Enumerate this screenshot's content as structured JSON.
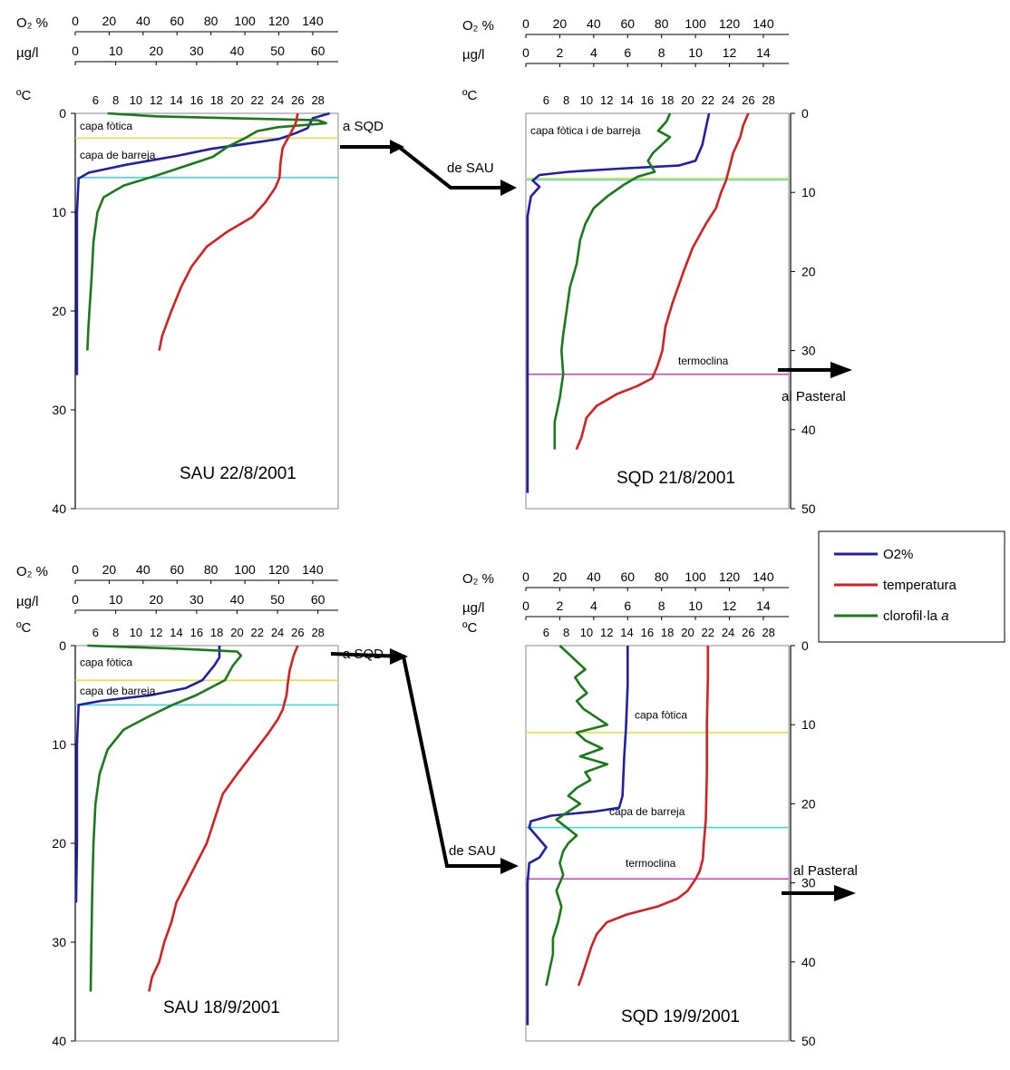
{
  "legend": {
    "items": [
      {
        "label": "O2%",
        "color": "#1f1fa8"
      },
      {
        "label": "temperatura",
        "color": "#d42020"
      },
      {
        "label": "clorofil·la ",
        "label_italic": "a",
        "color": "#1a7a1a"
      }
    ]
  },
  "colors": {
    "o2": "#1f1fa8",
    "temp": "#d42020",
    "chl": "#1a7a1a",
    "yellow_line": "#e8e040",
    "cyan_line": "#40d8e0",
    "magenta_line": "#d040c0"
  },
  "chart_data": [
    {
      "type": "line",
      "id": "sau-aug",
      "title": "SAU 22/8/2001",
      "units": {
        "o2": "O₂ %",
        "chl": "µg/l",
        "temp": "ºC"
      },
      "o2_ticks": [
        "0",
        "20",
        "40",
        "60",
        "80",
        "100",
        "120",
        "140"
      ],
      "chl_ticks": [
        "0",
        "10",
        "20",
        "30",
        "40",
        "50",
        "60"
      ],
      "temp_ticks": [
        "6",
        "8",
        "10",
        "12",
        "14",
        "16",
        "18",
        "20",
        "22",
        "24",
        "26",
        "28"
      ],
      "depth_ticks": [
        "0",
        "10",
        "20",
        "30",
        "40"
      ],
      "depth_range": [
        0,
        40
      ],
      "o2_range": [
        0,
        155
      ],
      "chl_range": [
        0,
        65
      ],
      "temp_range": [
        4,
        30
      ],
      "hlines": [
        {
          "depth": 2.5,
          "color": "yellow"
        },
        {
          "depth": 6.5,
          "color": "cyan"
        }
      ],
      "annotations": [
        {
          "text": "capa fòtica",
          "depth": 1.3
        },
        {
          "text": "capa de barreja",
          "depth": 4.2
        }
      ],
      "series": {
        "o2": [
          [
            150,
            0
          ],
          [
            140,
            0.5
          ],
          [
            137,
            1.5
          ],
          [
            130,
            2
          ],
          [
            125,
            2.3
          ],
          [
            120,
            2.6
          ],
          [
            100,
            3.1
          ],
          [
            80,
            3.6
          ],
          [
            60,
            4.3
          ],
          [
            30,
            5.2
          ],
          [
            8,
            6
          ],
          [
            2,
            6.6
          ],
          [
            1,
            10
          ],
          [
            1,
            20
          ],
          [
            1,
            26.5
          ]
        ],
        "chl": [
          [
            8,
            0
          ],
          [
            20,
            0.3
          ],
          [
            60,
            0.7
          ],
          [
            62,
            1
          ],
          [
            50,
            1.4
          ],
          [
            45,
            1.8
          ],
          [
            42,
            2.5
          ],
          [
            38,
            3.3
          ],
          [
            34,
            4.4
          ],
          [
            26,
            5.5
          ],
          [
            20,
            6.3
          ],
          [
            12,
            7.3
          ],
          [
            7,
            8.5
          ],
          [
            5.5,
            10
          ],
          [
            4.5,
            13
          ],
          [
            4,
            17
          ],
          [
            3.5,
            20
          ],
          [
            3.2,
            22
          ],
          [
            3,
            24
          ]
        ],
        "temp": [
          [
            26,
            0
          ],
          [
            25.8,
            1
          ],
          [
            25.3,
            2
          ],
          [
            24.5,
            3.5
          ],
          [
            24.3,
            5
          ],
          [
            24.2,
            6.5
          ],
          [
            23.8,
            7.5
          ],
          [
            22.8,
            9
          ],
          [
            21.5,
            10.5
          ],
          [
            19,
            12
          ],
          [
            17,
            13.5
          ],
          [
            15.5,
            15.5
          ],
          [
            14.5,
            17.5
          ],
          [
            13.5,
            20
          ],
          [
            12.6,
            22.5
          ],
          [
            12.3,
            24
          ]
        ]
      }
    },
    {
      "type": "line",
      "id": "sqd-aug",
      "title": "SQD 21/8/2001",
      "units": {
        "o2": "O₂ %",
        "chl": "µg/l",
        "temp": "ºC"
      },
      "o2_ticks": [
        "0",
        "20",
        "40",
        "60",
        "80",
        "100",
        "120",
        "140"
      ],
      "chl_ticks": [
        "0",
        "2",
        "4",
        "6",
        "8",
        "10",
        "12",
        "14"
      ],
      "temp_ticks": [
        "6",
        "8",
        "10",
        "12",
        "14",
        "16",
        "18",
        "20",
        "22",
        "24",
        "26",
        "28"
      ],
      "depth_ticks": [
        "0",
        "10",
        "20",
        "30",
        "40",
        "50"
      ],
      "depth_range": [
        0,
        50
      ],
      "o2_range": [
        0,
        155
      ],
      "chl_range": [
        0,
        15.5
      ],
      "temp_range": [
        4,
        30
      ],
      "hlines": [
        {
          "depth": 8.2,
          "color": "yellow"
        },
        {
          "depth": 8.4,
          "color": "cyan"
        },
        {
          "depth": 33,
          "color": "magenta"
        }
      ],
      "annotations": [
        {
          "text": "capa fòtica i de barreja",
          "depth": 2.2
        },
        {
          "text": "termoclina",
          "depth": 31.3
        }
      ],
      "series": {
        "o2": [
          [
            108,
            0
          ],
          [
            106,
            2
          ],
          [
            104,
            4
          ],
          [
            100,
            6
          ],
          [
            90,
            6.6
          ],
          [
            55,
            7
          ],
          [
            25,
            7.4
          ],
          [
            8,
            7.8
          ],
          [
            4,
            8.5
          ],
          [
            8,
            9.3
          ],
          [
            3,
            10.5
          ],
          [
            1,
            13
          ],
          [
            1,
            30
          ],
          [
            1,
            48
          ]
        ],
        "chl": [
          [
            8.5,
            0
          ],
          [
            8.3,
            1
          ],
          [
            7.8,
            2.2
          ],
          [
            8.5,
            3
          ],
          [
            8,
            4
          ],
          [
            7.5,
            5
          ],
          [
            7.2,
            6
          ],
          [
            7.6,
            7.4
          ],
          [
            6.6,
            8
          ],
          [
            5.8,
            9
          ],
          [
            4.8,
            10.5
          ],
          [
            4,
            12
          ],
          [
            3.5,
            14
          ],
          [
            3.2,
            16
          ],
          [
            3,
            19
          ],
          [
            2.6,
            22
          ],
          [
            2.4,
            25
          ],
          [
            2.2,
            28
          ],
          [
            2.1,
            30
          ],
          [
            2.2,
            33
          ],
          [
            2,
            36
          ],
          [
            1.7,
            39
          ],
          [
            1.7,
            42.5
          ]
        ],
        "temp": [
          [
            26,
            0
          ],
          [
            25.5,
            1.5
          ],
          [
            25.2,
            3
          ],
          [
            24.5,
            5
          ],
          [
            24,
            7.5
          ],
          [
            23.8,
            8.5
          ],
          [
            23.3,
            10
          ],
          [
            22.8,
            12
          ],
          [
            21.8,
            14
          ],
          [
            20.5,
            17
          ],
          [
            19.6,
            20
          ],
          [
            18.5,
            24
          ],
          [
            17.8,
            27
          ],
          [
            17.5,
            30
          ],
          [
            17,
            32
          ],
          [
            16.5,
            33.5
          ],
          [
            15,
            34.5
          ],
          [
            13,
            35.5
          ],
          [
            11,
            37
          ],
          [
            10,
            38.5
          ],
          [
            9.5,
            41
          ],
          [
            9,
            42.5
          ]
        ]
      }
    },
    {
      "type": "line",
      "id": "sau-sep",
      "title": "SAU 18/9/2001",
      "units": {
        "o2": "O₂ %",
        "chl": "µg/l",
        "temp": "ºC"
      },
      "o2_ticks": [
        "0",
        "20",
        "40",
        "60",
        "80",
        "100",
        "120",
        "140"
      ],
      "chl_ticks": [
        "0",
        "10",
        "20",
        "30",
        "40",
        "50",
        "60"
      ],
      "temp_ticks": [
        "6",
        "8",
        "10",
        "12",
        "14",
        "16",
        "18",
        "20",
        "22",
        "24",
        "26",
        "28"
      ],
      "depth_ticks": [
        "0",
        "10",
        "20",
        "30",
        "40"
      ],
      "depth_range": [
        0,
        40
      ],
      "o2_range": [
        0,
        155
      ],
      "chl_range": [
        0,
        65
      ],
      "temp_range": [
        4,
        30
      ],
      "hlines": [
        {
          "depth": 3.5,
          "color": "yellow"
        },
        {
          "depth": 6,
          "color": "cyan"
        }
      ],
      "annotations": [
        {
          "text": "capa fòtica",
          "depth": 1.7
        },
        {
          "text": "capa de barreja",
          "depth": 4.6
        }
      ],
      "series": {
        "o2": [
          [
            85,
            0
          ],
          [
            85,
            1.2
          ],
          [
            82,
            2
          ],
          [
            75,
            3.5
          ],
          [
            65,
            4.3
          ],
          [
            45,
            5
          ],
          [
            15,
            5.6
          ],
          [
            2,
            6
          ],
          [
            1,
            10
          ],
          [
            1,
            20
          ],
          [
            0.5,
            26
          ]
        ],
        "chl": [
          [
            3,
            0
          ],
          [
            25,
            0.3
          ],
          [
            40,
            0.6
          ],
          [
            41,
            1
          ],
          [
            39,
            2
          ],
          [
            37,
            3.5
          ],
          [
            30,
            5
          ],
          [
            24,
            6
          ],
          [
            18,
            7.2
          ],
          [
            12,
            8.5
          ],
          [
            8,
            10.5
          ],
          [
            6,
            13
          ],
          [
            5,
            16
          ],
          [
            4.5,
            20
          ],
          [
            4.2,
            25
          ],
          [
            4,
            30
          ],
          [
            3.8,
            35
          ]
        ],
        "temp": [
          [
            26,
            0
          ],
          [
            25.6,
            1
          ],
          [
            25.2,
            2.5
          ],
          [
            25,
            4
          ],
          [
            24.9,
            5
          ],
          [
            24.5,
            6.5
          ],
          [
            24,
            7.5
          ],
          [
            23,
            9
          ],
          [
            21.5,
            11
          ],
          [
            20,
            13
          ],
          [
            18.6,
            15
          ],
          [
            17.8,
            17.5
          ],
          [
            17,
            20
          ],
          [
            16,
            22
          ],
          [
            15,
            24
          ],
          [
            14,
            26
          ],
          [
            13.5,
            28
          ],
          [
            12.8,
            30
          ],
          [
            12.3,
            32
          ],
          [
            11.6,
            33.5
          ],
          [
            11.3,
            35
          ]
        ]
      }
    },
    {
      "type": "line",
      "id": "sqd-sep",
      "title": "SQD 19/9/2001",
      "units": {
        "o2": "O₂ %",
        "chl": "µg/l",
        "temp": "ºC"
      },
      "o2_ticks": [
        "0",
        "20",
        "40",
        "60",
        "80",
        "100",
        "120",
        "140"
      ],
      "chl_ticks": [
        "0",
        "2",
        "4",
        "6",
        "8",
        "10",
        "12",
        "14"
      ],
      "temp_ticks": [
        "6",
        "8",
        "10",
        "12",
        "14",
        "16",
        "18",
        "20",
        "22",
        "24",
        "26",
        "28"
      ],
      "depth_ticks": [
        "0",
        "10",
        "20",
        "30",
        "40",
        "50"
      ],
      "depth_range": [
        0,
        50
      ],
      "o2_range": [
        0,
        155
      ],
      "chl_range": [
        0,
        15.5
      ],
      "temp_range": [
        4,
        30
      ],
      "hlines": [
        {
          "depth": 11,
          "color": "yellow"
        },
        {
          "depth": 23,
          "color": "cyan"
        },
        {
          "depth": 29.5,
          "color": "magenta"
        }
      ],
      "annotations": [
        {
          "text": "capa fòtica",
          "depth": 8.8
        },
        {
          "text": "capa de barreja",
          "depth": 21
        },
        {
          "text": "termoclina",
          "depth": 27.5
        }
      ],
      "series": {
        "o2": [
          [
            60,
            0
          ],
          [
            60,
            5
          ],
          [
            59,
            10.5
          ],
          [
            58,
            14
          ],
          [
            57,
            19
          ],
          [
            55,
            20.5
          ],
          [
            40,
            21
          ],
          [
            15,
            21.5
          ],
          [
            3,
            22.2
          ],
          [
            2,
            23
          ],
          [
            8,
            24.5
          ],
          [
            12,
            25.5
          ],
          [
            8,
            26.8
          ],
          [
            2,
            27.5
          ],
          [
            1,
            30
          ],
          [
            1,
            48
          ]
        ],
        "chl": [
          [
            2,
            0
          ],
          [
            2.5,
            1
          ],
          [
            3,
            2
          ],
          [
            3.5,
            3
          ],
          [
            2.9,
            4
          ],
          [
            3.2,
            5
          ],
          [
            3.6,
            6
          ],
          [
            3,
            7
          ],
          [
            3.4,
            8
          ],
          [
            4.8,
            10
          ],
          [
            3,
            11
          ],
          [
            3.5,
            12
          ],
          [
            4.5,
            13
          ],
          [
            3.2,
            14
          ],
          [
            4.8,
            15
          ],
          [
            3.5,
            16
          ],
          [
            3.8,
            17
          ],
          [
            3,
            18
          ],
          [
            2.5,
            19
          ],
          [
            3.2,
            20
          ],
          [
            2.5,
            21
          ],
          [
            1.8,
            22
          ],
          [
            2.4,
            23
          ],
          [
            3,
            24
          ],
          [
            2.5,
            25
          ],
          [
            2.2,
            26
          ],
          [
            2,
            27.5
          ],
          [
            2.2,
            29
          ],
          [
            1.8,
            31
          ],
          [
            2.1,
            33
          ],
          [
            1.9,
            35
          ],
          [
            1.6,
            37
          ],
          [
            1.6,
            39
          ],
          [
            1.4,
            41
          ],
          [
            1.2,
            43
          ]
        ],
        "temp": [
          [
            22,
            0
          ],
          [
            22,
            4
          ],
          [
            21.9,
            10
          ],
          [
            21.9,
            16
          ],
          [
            21.8,
            22
          ],
          [
            21.6,
            25
          ],
          [
            21.5,
            27
          ],
          [
            21.2,
            28.5
          ],
          [
            20.8,
            29.5
          ],
          [
            20,
            31
          ],
          [
            19,
            32
          ],
          [
            17,
            33
          ],
          [
            14,
            34
          ],
          [
            12,
            35
          ],
          [
            11,
            36.5
          ],
          [
            10.5,
            38
          ],
          [
            10,
            40
          ],
          [
            9.5,
            42
          ],
          [
            9.2,
            43
          ]
        ]
      }
    }
  ],
  "flow_labels": {
    "a_sqd_1": "a SQD",
    "de_sau_1": "de SAU",
    "al_pasteral_1": "al Pasteral",
    "a_sqd_2": "a SQD",
    "de_sau_2": "de SAU",
    "al_pasteral_2": "al Pasteral"
  }
}
